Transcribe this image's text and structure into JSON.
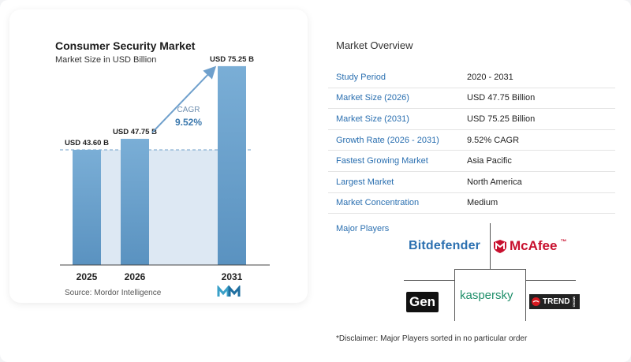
{
  "chart_data": {
    "type": "bar",
    "title": "Consumer Security Market",
    "subtitle": "Market Size in USD Billion",
    "categories": [
      "2025",
      "2026",
      "2031"
    ],
    "values": [
      43.6,
      47.75,
      75.25
    ],
    "data_labels": [
      "USD 43.60 B",
      "USD 47.75 B",
      "USD 75.25 B"
    ],
    "annotation": {
      "label": "CAGR",
      "value": "9.52%"
    },
    "ylim": [
      0,
      80
    ],
    "grid": false,
    "colors": {
      "bar": "#5a92c0",
      "bar_top": "#7aaed6",
      "arrow": "#6fa0cc",
      "band": "#dde8f3"
    }
  },
  "source": "Source:  Mordor Intelligence",
  "overview": {
    "title": "Market Overview",
    "rows": [
      {
        "label": "Study Period",
        "value": "2020 - 2031"
      },
      {
        "label": "Market Size (2026)",
        "value": "USD 47.75 Billion"
      },
      {
        "label": "Market Size (2031)",
        "value": "USD 75.25 Billion"
      },
      {
        "label": "Growth Rate (2026 - 2031)",
        "value": "9.52% CAGR"
      },
      {
        "label": "Fastest Growing Market",
        "value": "Asia Pacific"
      },
      {
        "label": "Largest Market",
        "value": "North America"
      },
      {
        "label": "Market Concentration",
        "value": "Medium"
      }
    ]
  },
  "players": {
    "title": "Major Players",
    "bitdefender": "Bitdefender",
    "mcafee": "McAfee",
    "mcafee_tm": "™",
    "gen": "Gen",
    "kaspersky": "kaspersky",
    "trend": "TREND",
    "trend_suffix": "MICRO"
  },
  "disclaimer": "*Disclaimer: Major Players sorted in no particular order"
}
